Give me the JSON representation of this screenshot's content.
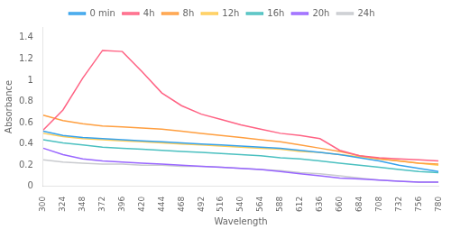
{
  "chart_data": {
    "type": "line",
    "xlabel": "Wavelength",
    "ylabel": "Absorbance",
    "x": [
      300,
      324,
      348,
      372,
      396,
      420,
      444,
      468,
      492,
      516,
      540,
      564,
      588,
      612,
      636,
      660,
      684,
      708,
      732,
      756,
      780
    ],
    "xlim": [
      300,
      780
    ],
    "xticks": [
      300,
      324,
      348,
      372,
      396,
      420,
      444,
      468,
      492,
      516,
      540,
      564,
      588,
      612,
      636,
      660,
      684,
      708,
      732,
      756,
      780
    ],
    "ylim": [
      0,
      1.5
    ],
    "yticks": [
      0,
      0.2,
      0.4,
      0.6,
      0.8,
      1,
      1.2,
      1.4
    ],
    "grid": false,
    "legend": "top",
    "series": [
      {
        "name": "0 min",
        "values": [
          0.52,
          0.48,
          0.46,
          0.45,
          0.44,
          0.43,
          0.42,
          0.41,
          0.4,
          0.39,
          0.38,
          0.37,
          0.36,
          0.34,
          0.32,
          0.3,
          0.27,
          0.24,
          0.2,
          0.17,
          0.14
        ]
      },
      {
        "name": "4h",
        "values": [
          0.53,
          0.72,
          1.02,
          1.28,
          1.27,
          1.08,
          0.88,
          0.76,
          0.68,
          0.63,
          0.58,
          0.54,
          0.5,
          0.48,
          0.45,
          0.34,
          0.29,
          0.27,
          0.26,
          0.25,
          0.24
        ]
      },
      {
        "name": "8h",
        "values": [
          0.67,
          0.62,
          0.59,
          0.57,
          0.56,
          0.55,
          0.54,
          0.52,
          0.5,
          0.48,
          0.46,
          0.44,
          0.42,
          0.39,
          0.36,
          0.33,
          0.29,
          0.26,
          0.24,
          0.22,
          0.21
        ]
      },
      {
        "name": "12h",
        "values": [
          0.5,
          0.47,
          0.45,
          0.44,
          0.43,
          0.42,
          0.41,
          0.4,
          0.39,
          0.38,
          0.37,
          0.36,
          0.35,
          0.33,
          0.32,
          0.3,
          0.28,
          0.26,
          0.24,
          0.22,
          0.2
        ]
      },
      {
        "name": "16h",
        "values": [
          0.44,
          0.41,
          0.39,
          0.37,
          0.36,
          0.35,
          0.34,
          0.33,
          0.32,
          0.31,
          0.3,
          0.29,
          0.27,
          0.26,
          0.24,
          0.22,
          0.2,
          0.18,
          0.16,
          0.14,
          0.13
        ]
      },
      {
        "name": "20h",
        "values": [
          0.36,
          0.3,
          0.26,
          0.24,
          0.23,
          0.22,
          0.21,
          0.2,
          0.19,
          0.18,
          0.17,
          0.16,
          0.14,
          0.12,
          0.1,
          0.08,
          0.07,
          0.06,
          0.05,
          0.04,
          0.04
        ]
      },
      {
        "name": "24h",
        "values": [
          0.25,
          0.23,
          0.22,
          0.21,
          0.21,
          0.2,
          0.2,
          0.19,
          0.19,
          0.18,
          0.17,
          0.16,
          0.15,
          0.13,
          0.12,
          0.1,
          0.08,
          0.06,
          0.05,
          0.04,
          0.04
        ]
      }
    ]
  }
}
